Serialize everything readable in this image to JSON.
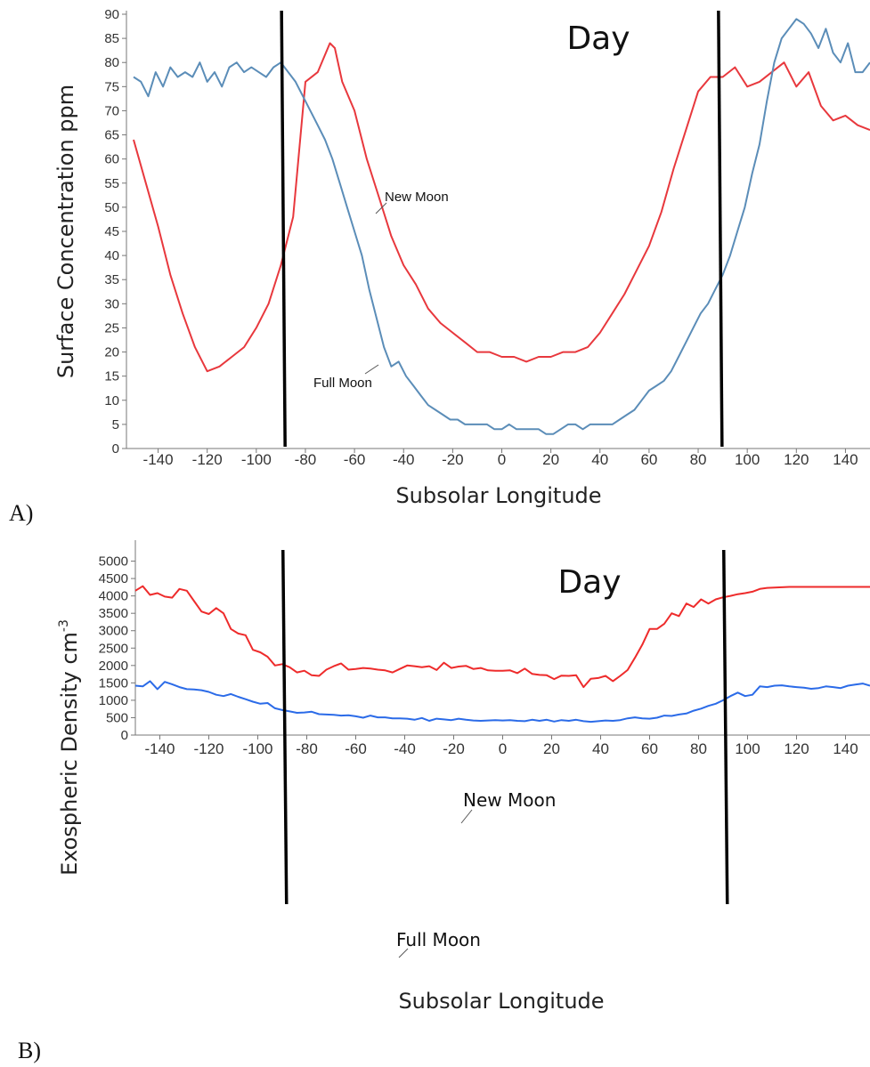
{
  "chart_data": [
    {
      "type": "line",
      "panel_label": "A)",
      "xlabel": "Subsolar Longitude",
      "ylabel": "Surface Concentration ppm",
      "annotation": "Day",
      "xlim": [
        -150,
        150
      ],
      "ylim": [
        0,
        90
      ],
      "x_ticks": [
        -140,
        -120,
        -100,
        -80,
        -60,
        -40,
        -20,
        0,
        20,
        40,
        60,
        80,
        100,
        120,
        140
      ],
      "y_ticks": [
        0,
        5,
        10,
        15,
        20,
        25,
        30,
        35,
        40,
        45,
        50,
        55,
        60,
        65,
        70,
        75,
        80,
        85,
        90
      ],
      "vertical_lines": [
        -89,
        89
      ],
      "series": [
        {
          "name": "New Moon",
          "color": "#e8383d",
          "x": [
            -150,
            -145,
            -140,
            -135,
            -130,
            -125,
            -120,
            -115,
            -110,
            -105,
            -100,
            -95,
            -90,
            -85,
            -80,
            -75,
            -70,
            -68,
            -65,
            -60,
            -55,
            -50,
            -45,
            -40,
            -35,
            -30,
            -25,
            -20,
            -15,
            -10,
            -5,
            0,
            5,
            10,
            15,
            20,
            25,
            30,
            35,
            40,
            45,
            50,
            55,
            60,
            65,
            70,
            75,
            80,
            85,
            90,
            95,
            100,
            105,
            110,
            115,
            120,
            125,
            130,
            135,
            140,
            145,
            150
          ],
          "y": [
            64,
            55,
            46,
            36,
            28,
            21,
            16,
            17,
            19,
            21,
            25,
            30,
            38,
            48,
            76,
            78,
            84,
            83,
            76,
            70,
            60,
            52,
            44,
            38,
            34,
            29,
            26,
            24,
            22,
            20,
            20,
            19,
            19,
            18,
            19,
            19,
            20,
            20,
            21,
            24,
            28,
            32,
            37,
            42,
            49,
            58,
            66,
            74,
            77,
            77,
            79,
            75,
            76,
            78,
            80,
            75,
            78,
            71,
            68,
            69,
            67,
            66
          ]
        },
        {
          "name": "Full Moon",
          "color": "#5b8db8",
          "x": [
            -150,
            -147,
            -144,
            -141,
            -138,
            -135,
            -132,
            -129,
            -126,
            -123,
            -120,
            -117,
            -114,
            -111,
            -108,
            -105,
            -102,
            -99,
            -96,
            -93,
            -90,
            -87,
            -84,
            -81,
            -78,
            -75,
            -72,
            -69,
            -66,
            -63,
            -60,
            -57,
            -54,
            -51,
            -48,
            -45,
            -42,
            -39,
            -36,
            -33,
            -30,
            -27,
            -24,
            -21,
            -18,
            -15,
            -12,
            -9,
            -6,
            -3,
            0,
            3,
            6,
            9,
            12,
            15,
            18,
            21,
            24,
            27,
            30,
            33,
            36,
            39,
            42,
            45,
            48,
            51,
            54,
            57,
            60,
            63,
            66,
            69,
            72,
            75,
            78,
            81,
            84,
            87,
            90,
            93,
            96,
            99,
            102,
            105,
            108,
            111,
            114,
            117,
            120,
            123,
            126,
            129,
            132,
            135,
            138,
            141,
            144,
            147,
            150
          ],
          "y": [
            77,
            76,
            73,
            78,
            75,
            79,
            77,
            78,
            77,
            80,
            76,
            78,
            75,
            79,
            80,
            78,
            79,
            78,
            77,
            79,
            80,
            78,
            76,
            73,
            70,
            67,
            64,
            60,
            55,
            50,
            45,
            40,
            33,
            27,
            21,
            17,
            18,
            15,
            13,
            11,
            9,
            8,
            7,
            6,
            6,
            5,
            5,
            5,
            5,
            4,
            4,
            5,
            4,
            4,
            4,
            4,
            3,
            3,
            4,
            5,
            5,
            4,
            5,
            5,
            5,
            5,
            6,
            7,
            8,
            10,
            12,
            13,
            14,
            16,
            19,
            22,
            25,
            28,
            30,
            33,
            36,
            40,
            45,
            50,
            57,
            63,
            72,
            80,
            85,
            87,
            89,
            88,
            86,
            83,
            87,
            82,
            80,
            84,
            78,
            78,
            80
          ]
        }
      ]
    },
    {
      "type": "line",
      "panel_label": "B)",
      "xlabel": "Subsolar Longitude",
      "ylabel": "Exospheric Density cm",
      "ylabel_superscript": "-3",
      "annotation": "Day",
      "xlim": [
        -150,
        150
      ],
      "ylim": [
        0,
        5500
      ],
      "x_ticks": [
        -140,
        -120,
        -100,
        -80,
        -60,
        -40,
        -20,
        0,
        20,
        40,
        60,
        80,
        100,
        120,
        140
      ],
      "y_ticks": [
        0,
        500,
        1000,
        1500,
        2000,
        2500,
        3000,
        3500,
        4000,
        4500,
        5000
      ],
      "vertical_lines": [
        -89,
        91
      ],
      "series": [
        {
          "name": "New Moon",
          "color": "#ee2b2b",
          "x": [
            -150,
            -147,
            -144,
            -141,
            -138,
            -135,
            -132,
            -129,
            -126,
            -123,
            -120,
            -117,
            -114,
            -111,
            -108,
            -105,
            -102,
            -99,
            -96,
            -93,
            -90,
            -87,
            -84,
            -81,
            -78,
            -75,
            -72,
            -69,
            -66,
            -63,
            -60,
            -57,
            -54,
            -51,
            -48,
            -45,
            -42,
            -39,
            -36,
            -33,
            -30,
            -27,
            -24,
            -21,
            -18,
            -15,
            -12,
            -9,
            -6,
            -3,
            0,
            3,
            6,
            9,
            12,
            15,
            18,
            21,
            24,
            27,
            30,
            33,
            36,
            39,
            42,
            45,
            48,
            51,
            54,
            57,
            60,
            63,
            66,
            69,
            72,
            75,
            78,
            81,
            84,
            87,
            90,
            93,
            96,
            99,
            102,
            105,
            108,
            111,
            114,
            117,
            120,
            123,
            126,
            129,
            132,
            135,
            138,
            141,
            144,
            147,
            150
          ],
          "y": [
            4150,
            4280,
            4030,
            4080,
            3980,
            3950,
            4200,
            4150,
            3850,
            3550,
            3480,
            3650,
            3500,
            3050,
            2920,
            2870,
            2450,
            2380,
            2250,
            2000,
            2040,
            1950,
            1800,
            1850,
            1720,
            1700,
            1880,
            1980,
            2060,
            1880,
            1900,
            1930,
            1910,
            1880,
            1860,
            1800,
            1900,
            2000,
            1980,
            1950,
            1980,
            1870,
            2080,
            1930,
            1970,
            1990,
            1900,
            1930,
            1860,
            1850,
            1850,
            1860,
            1780,
            1910,
            1760,
            1730,
            1720,
            1610,
            1710,
            1700,
            1720,
            1380,
            1620,
            1640,
            1700,
            1550,
            1700,
            1870,
            2220,
            2600,
            3050,
            3050,
            3200,
            3500,
            3420,
            3780,
            3680,
            3900,
            3780,
            3900,
            3960,
            4000,
            4050,
            4080,
            4120,
            4200,
            4230,
            4240,
            4250,
            4260,
            4260,
            4260,
            4260,
            4260,
            4260,
            4260,
            4260,
            4260,
            4260,
            4260,
            4260
          ]
        },
        {
          "name": "Full Moon",
          "color": "#2b6be8",
          "x": [
            -150,
            -147,
            -144,
            -141,
            -138,
            -135,
            -132,
            -129,
            -126,
            -123,
            -120,
            -117,
            -114,
            -111,
            -108,
            -105,
            -102,
            -99,
            -96,
            -93,
            -90,
            -87,
            -84,
            -81,
            -78,
            -75,
            -72,
            -69,
            -66,
            -63,
            -60,
            -57,
            -54,
            -51,
            -48,
            -45,
            -42,
            -39,
            -36,
            -33,
            -30,
            -27,
            -24,
            -21,
            -18,
            -15,
            -12,
            -9,
            -6,
            -3,
            0,
            3,
            6,
            9,
            12,
            15,
            18,
            21,
            24,
            27,
            30,
            33,
            36,
            39,
            42,
            45,
            48,
            51,
            54,
            57,
            60,
            63,
            66,
            69,
            72,
            75,
            78,
            81,
            84,
            87,
            90,
            93,
            96,
            99,
            102,
            105,
            108,
            111,
            114,
            117,
            120,
            123,
            126,
            129,
            132,
            135,
            138,
            141,
            144,
            147,
            150
          ],
          "y": [
            1420,
            1400,
            1550,
            1320,
            1530,
            1460,
            1380,
            1320,
            1310,
            1290,
            1240,
            1160,
            1120,
            1180,
            1100,
            1030,
            960,
            900,
            920,
            770,
            720,
            680,
            640,
            650,
            670,
            600,
            590,
            580,
            560,
            570,
            540,
            500,
            560,
            510,
            510,
            480,
            480,
            470,
            440,
            490,
            410,
            470,
            450,
            430,
            470,
            440,
            420,
            410,
            420,
            430,
            420,
            430,
            410,
            400,
            440,
            410,
            440,
            390,
            430,
            410,
            440,
            400,
            380,
            400,
            420,
            410,
            430,
            480,
            510,
            480,
            470,
            500,
            560,
            550,
            590,
            620,
            700,
            760,
            840,
            900,
            1000,
            1120,
            1220,
            1120,
            1160,
            1400,
            1380,
            1420,
            1430,
            1400,
            1380,
            1360,
            1330,
            1350,
            1400,
            1380,
            1350,
            1420,
            1450,
            1480,
            1420
          ]
        }
      ]
    }
  ]
}
